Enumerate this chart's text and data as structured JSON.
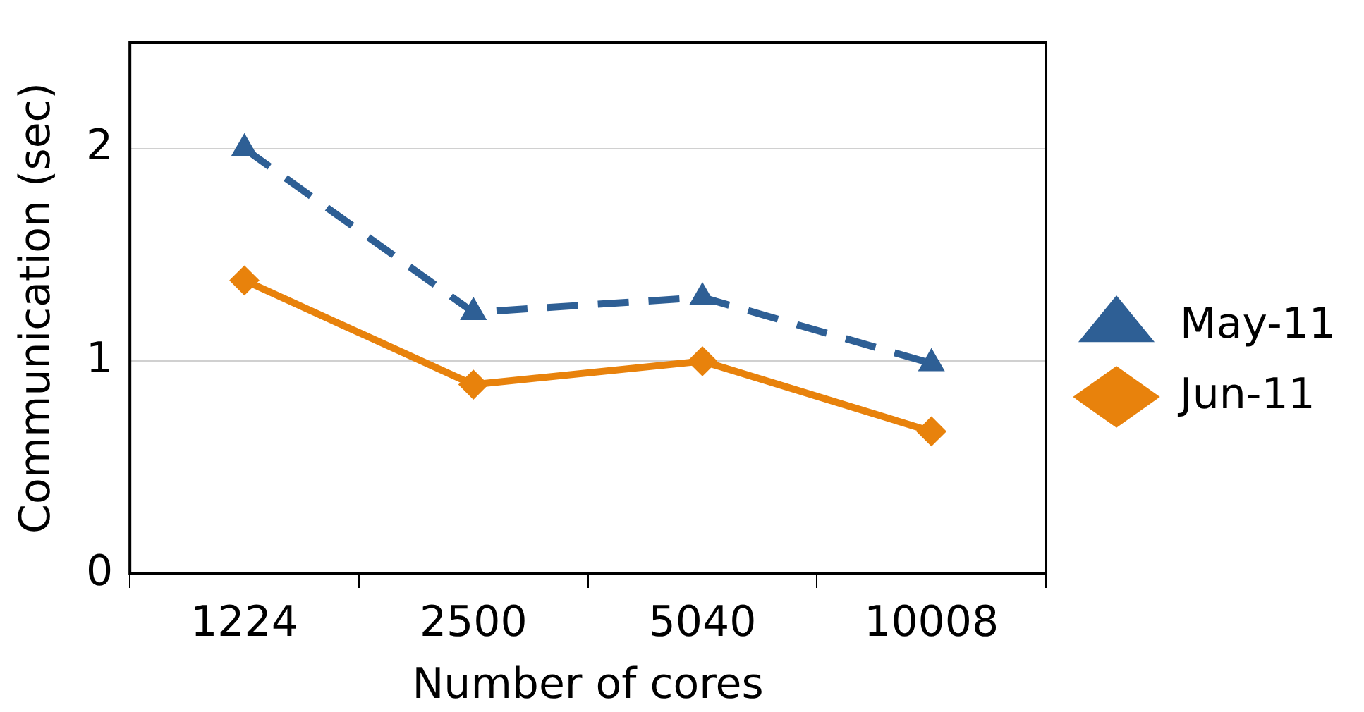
{
  "chart_data": {
    "type": "line",
    "xlabel": "Number of cores",
    "ylabel": "Communication (sec)",
    "categories": [
      "1224",
      "2500",
      "5040",
      "10008"
    ],
    "series": [
      {
        "name": "May-11",
        "color": "#2e5f95",
        "values": [
          2.0,
          1.23,
          1.3,
          0.99
        ],
        "marker": "triangle",
        "line_style": "dashed"
      },
      {
        "name": "Jun-11",
        "color": "#e8820c",
        "values": [
          1.38,
          0.89,
          1.0,
          0.67
        ],
        "marker": "diamond",
        "line_style": "solid"
      }
    ],
    "ylim": [
      0,
      2.5
    ],
    "yticks": [
      0,
      1,
      2
    ],
    "grid": "y",
    "legend": "right"
  }
}
